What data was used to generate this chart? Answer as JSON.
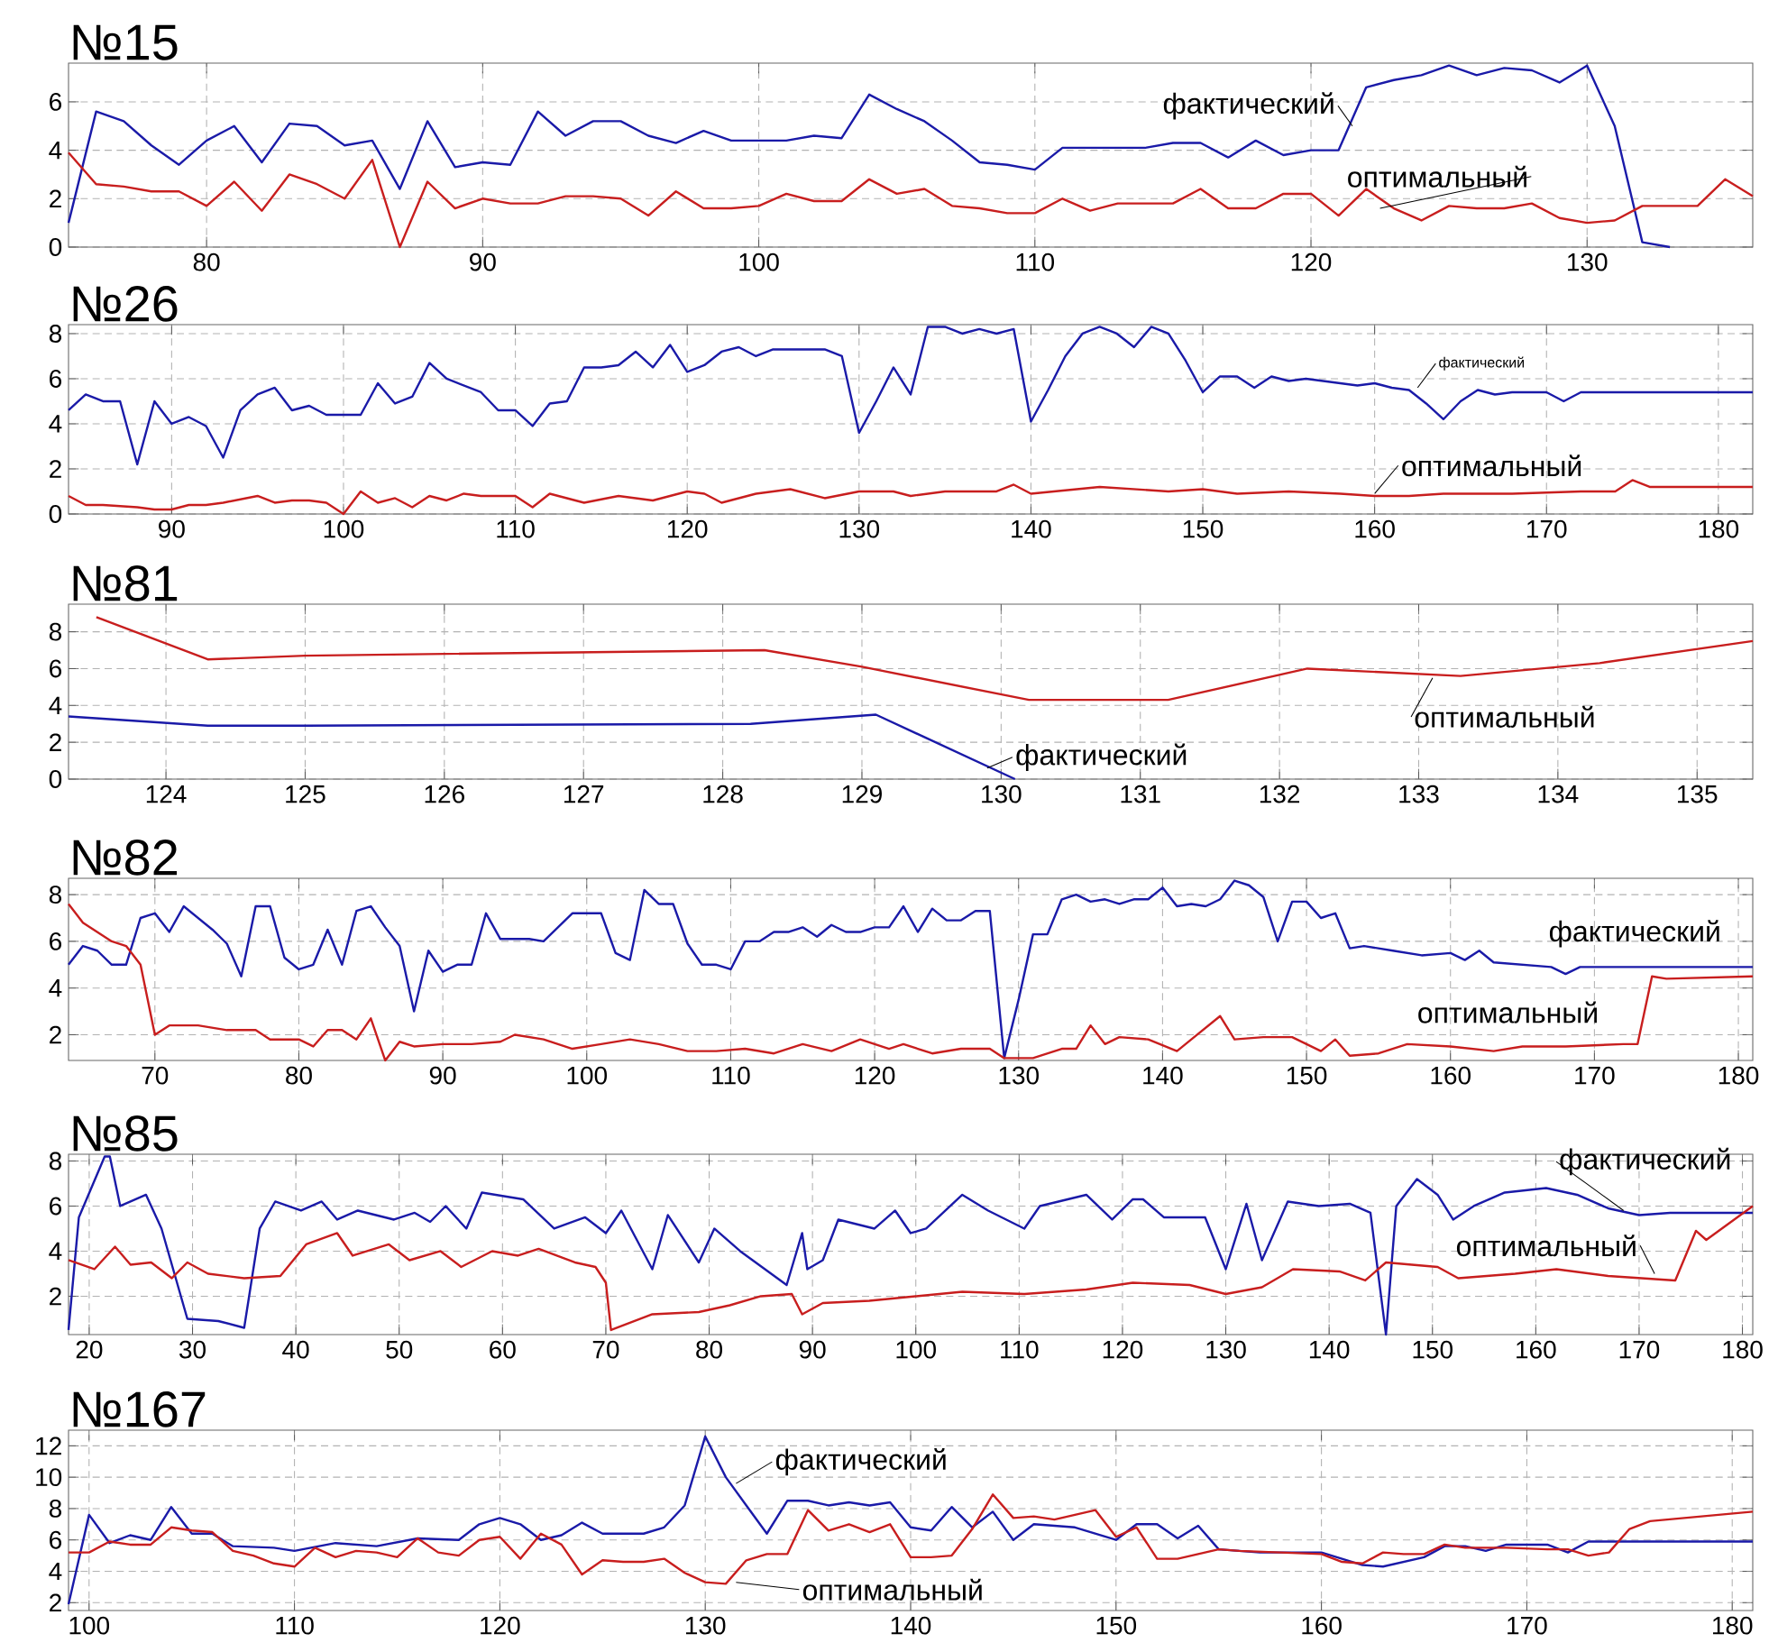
{
  "chart_data": [
    {
      "type": "line",
      "title": "№15",
      "xlim": [
        75,
        136
      ],
      "ylim": [
        0,
        7.6
      ],
      "xticks": [
        80,
        90,
        100,
        110,
        120,
        130
      ],
      "yticks": [
        0,
        2,
        4,
        6
      ],
      "grid": true,
      "series": [
        {
          "color": "#1a1aa8",
          "x": [
            75,
            76,
            77,
            78,
            79,
            80,
            81,
            82,
            83,
            84,
            85,
            86,
            87,
            88,
            89,
            90,
            91,
            92,
            93,
            94,
            95,
            96,
            97,
            98,
            99,
            100,
            101,
            102,
            103,
            104,
            105,
            106,
            107,
            108,
            109,
            110,
            111,
            112,
            113,
            114,
            115,
            116,
            117,
            118,
            119,
            120,
            121,
            122,
            123,
            124,
            125,
            126,
            127,
            128,
            129,
            130,
            131,
            132,
            133
          ],
          "values": [
            1,
            5.6,
            5.2,
            4.2,
            3.4,
            4.4,
            5.0,
            3.5,
            5.1,
            5.0,
            4.2,
            4.4,
            2.4,
            5.2,
            3.3,
            3.5,
            3.4,
            5.6,
            4.6,
            5.2,
            5.2,
            4.6,
            4.3,
            4.8,
            4.4,
            4.4,
            4.4,
            4.6,
            4.5,
            6.3,
            5.7,
            5.2,
            4.4,
            3.5,
            3.4,
            3.2,
            4.1,
            4.1,
            4.1,
            4.1,
            4.3,
            4.3,
            3.7,
            4.4,
            3.8,
            4.0,
            4.0,
            6.6,
            6.9,
            7.1,
            7.5,
            7.1,
            7.4,
            7.3,
            6.8,
            7.5,
            5.0,
            0.2,
            0
          ]
        },
        {
          "color": "#c81e1e",
          "x": [
            75,
            76,
            77,
            78,
            79,
            80,
            81,
            82,
            83,
            84,
            85,
            86,
            87,
            88,
            89,
            90,
            91,
            92,
            93,
            94,
            95,
            96,
            97,
            98,
            99,
            100,
            101,
            102,
            103,
            104,
            105,
            106,
            107,
            108,
            109,
            110,
            111,
            112,
            113,
            114,
            115,
            116,
            117,
            118,
            119,
            120,
            121,
            122,
            123,
            124,
            125,
            126,
            127,
            128,
            129,
            130,
            131,
            132,
            133,
            134,
            135,
            136
          ],
          "values": [
            3.9,
            2.6,
            2.5,
            2.3,
            2.3,
            1.7,
            2.7,
            1.5,
            3.0,
            2.6,
            2.0,
            3.6,
            0,
            2.7,
            1.6,
            2.0,
            1.8,
            1.8,
            2.1,
            2.1,
            2.0,
            1.3,
            2.3,
            1.6,
            1.6,
            1.7,
            2.2,
            1.9,
            1.9,
            2.8,
            2.2,
            2.4,
            1.7,
            1.6,
            1.4,
            1.4,
            2.0,
            1.5,
            1.8,
            1.8,
            1.8,
            2.4,
            1.6,
            1.6,
            2.2,
            2.2,
            1.3,
            2.4,
            1.6,
            1.1,
            1.7,
            1.6,
            1.6,
            1.8,
            1.2,
            1.0,
            1.1,
            1.7,
            1.7,
            1.7,
            2.8,
            2.1
          ]
        }
      ],
      "annotations": [
        {
          "text": "фактический",
          "x": 121.5,
          "y": 5.0
        },
        {
          "text": "оптимальный",
          "x": 122.5,
          "y": 1.6
        }
      ]
    },
    {
      "type": "line",
      "title": "№26",
      "xlim": [
        84,
        182
      ],
      "ylim": [
        0,
        8.4
      ],
      "xticks": [
        90,
        100,
        110,
        120,
        130,
        140,
        150,
        160,
        170,
        180
      ],
      "yticks": [
        0,
        2,
        4,
        6,
        8
      ],
      "grid": true,
      "series": [
        {
          "color": "#1a1aa8",
          "x": [
            84,
            85,
            86,
            87,
            88,
            89,
            90,
            91,
            92,
            93,
            94,
            95,
            96,
            97,
            98,
            99,
            100,
            101,
            102,
            103,
            104,
            105,
            106,
            107,
            108,
            109,
            110,
            111,
            112,
            113,
            114,
            115,
            116,
            117,
            118,
            119,
            120,
            121,
            122,
            123,
            124,
            125,
            126,
            127,
            128,
            129,
            130,
            131,
            132,
            133,
            134,
            135,
            136,
            137,
            138,
            139,
            140,
            141,
            142,
            143,
            144,
            145,
            146,
            147,
            148,
            149,
            150,
            151,
            152,
            153,
            154,
            155,
            156,
            157,
            158,
            159,
            160,
            161,
            162,
            163,
            164,
            165,
            166,
            167,
            168,
            169,
            170,
            171,
            172,
            173,
            182
          ],
          "values": [
            4.6,
            5.3,
            5.0,
            5.0,
            2.2,
            5.0,
            4.0,
            4.3,
            3.9,
            2.5,
            4.6,
            5.3,
            5.6,
            4.6,
            4.8,
            4.4,
            4.4,
            4.4,
            5.8,
            4.9,
            5.2,
            6.7,
            6.0,
            5.7,
            5.4,
            4.6,
            4.6,
            3.9,
            4.9,
            5.0,
            6.5,
            6.5,
            6.6,
            7.2,
            6.5,
            7.5,
            6.3,
            6.6,
            7.2,
            7.4,
            7.0,
            7.3,
            7.3,
            7.3,
            7.3,
            7.0,
            3.6,
            5.0,
            6.5,
            5.3,
            8.3,
            8.3,
            8.0,
            8.2,
            8.0,
            8.2,
            4.1,
            5.5,
            7.0,
            8.0,
            8.3,
            8.0,
            7.4,
            8.3,
            8.0,
            6.8,
            5.4,
            6.1,
            6.1,
            5.6,
            6.1,
            5.9,
            6.0,
            5.9,
            5.8,
            5.7,
            5.8,
            5.6,
            5.5,
            4.9,
            4.2,
            5.0,
            5.5,
            5.3,
            5.4,
            5.4,
            5.4,
            5.0,
            5.4,
            5.4,
            5.4
          ]
        },
        {
          "color": "#c81e1e",
          "x": [
            84,
            85,
            86,
            88,
            89,
            90,
            91,
            92,
            93,
            95,
            96,
            97,
            98,
            99,
            100,
            101,
            102,
            103,
            104,
            105,
            106,
            107,
            108,
            110,
            111,
            112,
            114,
            116,
            118,
            120,
            121,
            122,
            124,
            126,
            128,
            130,
            132,
            133,
            135,
            138,
            139,
            140,
            144,
            148,
            150,
            152,
            155,
            158,
            160,
            162,
            164,
            168,
            172,
            174,
            175,
            176,
            182
          ],
          "values": [
            0.8,
            0.4,
            0.4,
            0.3,
            0.2,
            0.2,
            0.4,
            0.4,
            0.5,
            0.8,
            0.5,
            0.6,
            0.6,
            0.5,
            0,
            1.0,
            0.5,
            0.7,
            0.3,
            0.8,
            0.6,
            0.9,
            0.8,
            0.8,
            0.3,
            0.9,
            0.5,
            0.8,
            0.6,
            1.0,
            0.9,
            0.5,
            0.9,
            1.1,
            0.7,
            1.0,
            1.0,
            0.8,
            1.0,
            1.0,
            1.3,
            0.9,
            1.2,
            1.0,
            1.1,
            0.9,
            1.0,
            0.9,
            0.8,
            0.8,
            0.9,
            0.9,
            1.0,
            1.0,
            1.5,
            1.2,
            1.2
          ]
        }
      ],
      "annotations": [
        {
          "text": "фактический",
          "x": 162.5,
          "y": 5.6
        },
        {
          "text": "оптимальный",
          "x": 160,
          "y": 0.9
        }
      ]
    },
    {
      "type": "line",
      "title": "№81",
      "xlim": [
        123.3,
        135.4
      ],
      "ylim": [
        0,
        9.5
      ],
      "xticks": [
        124,
        125,
        126,
        127,
        128,
        129,
        130,
        131,
        132,
        133,
        134,
        135
      ],
      "yticks": [
        0,
        2,
        4,
        6,
        8
      ],
      "grid": true,
      "series": [
        {
          "color": "#1a1aa8",
          "x": [
            123.3,
            124.3,
            125,
            128.2,
            129.1,
            130.1
          ],
          "values": [
            3.4,
            2.9,
            2.9,
            3.0,
            3.5,
            0
          ]
        },
        {
          "color": "#c81e1e",
          "x": [
            123.5,
            124.3,
            125,
            126,
            128.3,
            129,
            130.2,
            131.2,
            132.2,
            133.3,
            134.3,
            135.4
          ],
          "values": [
            8.8,
            6.5,
            6.7,
            6.8,
            7.0,
            6.1,
            4.3,
            4.3,
            6.0,
            5.6,
            6.3,
            7.5
          ]
        }
      ],
      "annotations": [
        {
          "text": "фактический",
          "x": 129.9,
          "y": 0.6
        },
        {
          "text": "оптимальный",
          "x": 133.1,
          "y": 5.5
        }
      ]
    },
    {
      "type": "line",
      "title": "№82",
      "xlim": [
        64,
        181
      ],
      "ylim": [
        0.9,
        8.7
      ],
      "xticks": [
        70,
        80,
        90,
        100,
        110,
        120,
        130,
        140,
        150,
        160,
        170,
        180
      ],
      "yticks": [
        2,
        4,
        6,
        8
      ],
      "grid": true,
      "series": [
        {
          "color": "#1a1aa8",
          "x": [
            64,
            65,
            66,
            67,
            68,
            69,
            70,
            71,
            72,
            73,
            74,
            75,
            76,
            77,
            78,
            79,
            80,
            81,
            82,
            83,
            84,
            85,
            86,
            87,
            88,
            89,
            90,
            91,
            92,
            93,
            94,
            95,
            96,
            97,
            98,
            99,
            100,
            101,
            102,
            103,
            104,
            105,
            106,
            107,
            108,
            109,
            110,
            111,
            112,
            113,
            114,
            115,
            116,
            117,
            118,
            119,
            120,
            121,
            122,
            123,
            124,
            125,
            126,
            127,
            128,
            129,
            130,
            131,
            132,
            133,
            134,
            135,
            136,
            137,
            138,
            139,
            140,
            141,
            142,
            143,
            144,
            145,
            146,
            147,
            148,
            149,
            150,
            151,
            152,
            153,
            154,
            156,
            158,
            160,
            161,
            162,
            163,
            165,
            167,
            168,
            169,
            181
          ],
          "values": [
            5.0,
            5.8,
            5.6,
            5.0,
            5.0,
            7.0,
            7.2,
            6.4,
            7.5,
            7.0,
            6.5,
            5.9,
            4.5,
            7.5,
            7.5,
            5.3,
            4.8,
            5.0,
            6.5,
            5.0,
            7.3,
            7.5,
            6.6,
            5.8,
            3.0,
            5.6,
            4.7,
            5.0,
            5.0,
            7.2,
            6.1,
            6.1,
            6.1,
            6.0,
            6.6,
            7.2,
            7.2,
            7.2,
            5.5,
            5.2,
            8.2,
            7.6,
            7.6,
            5.9,
            5.0,
            5.0,
            4.8,
            6.0,
            6.0,
            6.4,
            6.4,
            6.6,
            6.2,
            6.7,
            6.4,
            6.4,
            6.6,
            6.6,
            7.5,
            6.4,
            7.4,
            6.9,
            6.9,
            7.3,
            7.3,
            1.0,
            3.5,
            6.3,
            6.3,
            7.8,
            8.0,
            7.7,
            7.8,
            7.6,
            7.8,
            7.8,
            8.3,
            7.5,
            7.6,
            7.5,
            7.8,
            8.6,
            8.4,
            7.9,
            6.0,
            7.7,
            7.7,
            7.0,
            7.2,
            5.7,
            5.8,
            5.6,
            5.4,
            5.5,
            5.2,
            5.6,
            5.1,
            5.0,
            4.9,
            4.6,
            4.9,
            4.9
          ]
        },
        {
          "color": "#c81e1e",
          "x": [
            64,
            65,
            66,
            67,
            68,
            69,
            70,
            71,
            73,
            75,
            77,
            78,
            80,
            81,
            82,
            83,
            84,
            85,
            86,
            87,
            88,
            90,
            92,
            94,
            95,
            97,
            99,
            101,
            103,
            105,
            107,
            109,
            111,
            113,
            115,
            117,
            119,
            121,
            122,
            124,
            126,
            128,
            129,
            131,
            133,
            134,
            135,
            136,
            137,
            139,
            141,
            142,
            144,
            145,
            147,
            149,
            151,
            152,
            153,
            155,
            157,
            160,
            163,
            165,
            168,
            172,
            173,
            174,
            175,
            181
          ],
          "values": [
            7.6,
            6.8,
            6.4,
            6.0,
            5.8,
            5.0,
            2.0,
            2.4,
            2.4,
            2.2,
            2.2,
            1.8,
            1.8,
            1.5,
            2.2,
            2.2,
            1.8,
            2.7,
            0.9,
            1.7,
            1.5,
            1.6,
            1.6,
            1.7,
            2.0,
            1.8,
            1.4,
            1.6,
            1.8,
            1.6,
            1.3,
            1.3,
            1.4,
            1.2,
            1.6,
            1.3,
            1.8,
            1.4,
            1.6,
            1.2,
            1.4,
            1.4,
            1.0,
            1.0,
            1.4,
            1.4,
            2.4,
            1.6,
            1.9,
            1.8,
            1.3,
            1.8,
            2.8,
            1.8,
            1.9,
            1.9,
            1.3,
            1.8,
            1.1,
            1.2,
            1.6,
            1.5,
            1.3,
            1.5,
            1.5,
            1.6,
            1.6,
            4.5,
            4.4,
            4.5
          ]
        }
      ],
      "annotations": [
        {
          "text": "фактический",
          "x": 180,
          "y": 5.0
        },
        {
          "text": "оптимальный",
          "x": 170,
          "y": 1.6
        }
      ]
    },
    {
      "type": "line",
      "title": "№85",
      "xlim": [
        18,
        181
      ],
      "ylim": [
        0.3,
        8.3
      ],
      "xticks": [
        20,
        30,
        40,
        50,
        60,
        70,
        80,
        90,
        100,
        110,
        120,
        130,
        140,
        150,
        160,
        170,
        180
      ],
      "yticks": [
        2,
        4,
        6,
        8
      ],
      "grid": true,
      "series": [
        {
          "color": "#1a1aa8",
          "x": [
            18,
            19,
            21.5,
            22,
            23,
            25.5,
            27,
            29.5,
            32.5,
            35,
            36.5,
            38,
            40.5,
            42.5,
            44,
            46,
            49.5,
            51.5,
            53,
            54.5,
            56.5,
            58,
            62,
            65,
            68,
            70,
            71.5,
            74.5,
            76,
            79,
            80.5,
            83,
            87.5,
            89,
            89.5,
            91,
            92.5,
            96,
            98,
            99.5,
            101,
            104.5,
            107,
            110.5,
            112,
            116.5,
            119,
            121,
            122,
            124,
            128,
            130,
            132,
            133.5,
            136,
            139,
            142,
            144,
            145.5,
            146.5,
            148.5,
            150.5,
            152,
            154,
            157,
            161,
            164,
            167,
            170,
            173,
            181
          ],
          "values": [
            0.5,
            5.5,
            8.2,
            8.2,
            6.0,
            6.5,
            5.0,
            1.0,
            0.9,
            0.6,
            5.0,
            6.2,
            5.8,
            6.2,
            5.4,
            5.8,
            5.4,
            5.7,
            5.3,
            6.0,
            5.0,
            6.6,
            6.3,
            5.0,
            5.5,
            4.8,
            5.8,
            3.2,
            5.6,
            3.5,
            5.0,
            4.0,
            2.5,
            4.8,
            3.2,
            3.6,
            5.4,
            5.0,
            5.8,
            4.8,
            5.0,
            6.5,
            5.8,
            5.0,
            6.0,
            6.5,
            5.4,
            6.3,
            6.3,
            5.5,
            5.5,
            3.2,
            6.1,
            3.6,
            6.2,
            6.0,
            6.1,
            5.7,
            0.3,
            6.0,
            7.2,
            6.5,
            5.4,
            6.0,
            6.6,
            6.8,
            6.5,
            5.9,
            5.6,
            5.7,
            5.7
          ]
        },
        {
          "color": "#c81e1e",
          "x": [
            18,
            20.5,
            22.5,
            24,
            26,
            28,
            29.5,
            31.5,
            35,
            38.5,
            41,
            44,
            45.5,
            49,
            51,
            54,
            56,
            59,
            61.5,
            63.5,
            67,
            69,
            70,
            70.5,
            74.5,
            79,
            82,
            85,
            88,
            89,
            91,
            95.5,
            100,
            104.5,
            110.5,
            116.5,
            121,
            126.5,
            130,
            133.5,
            136.5,
            141,
            143.5,
            145.5,
            150.5,
            152.5,
            158,
            162,
            167,
            173.5,
            175.5,
            176.5,
            181
          ],
          "values": [
            3.6,
            3.2,
            4.2,
            3.4,
            3.5,
            2.8,
            3.5,
            3.0,
            2.8,
            2.9,
            4.3,
            4.8,
            3.8,
            4.3,
            3.6,
            4.0,
            3.3,
            4.0,
            3.8,
            4.1,
            3.5,
            3.3,
            2.6,
            0.5,
            1.2,
            1.3,
            1.6,
            2.0,
            2.1,
            1.2,
            1.7,
            1.8,
            2.0,
            2.2,
            2.1,
            2.3,
            2.6,
            2.5,
            2.1,
            2.4,
            3.2,
            3.1,
            2.7,
            3.5,
            3.3,
            2.8,
            3.0,
            3.2,
            2.9,
            2.7,
            4.9,
            4.5,
            6.0
          ]
        }
      ],
      "annotations": [
        {
          "text": "фактический",
          "x": 168.5,
          "y": 5.8
        },
        {
          "text": "оптимальный",
          "x": 171.5,
          "y": 3.0
        }
      ]
    },
    {
      "type": "line",
      "title": "№167",
      "xlim": [
        99,
        181
      ],
      "ylim": [
        1.5,
        13
      ],
      "xticks": [
        100,
        110,
        120,
        130,
        140,
        150,
        160,
        170,
        180
      ],
      "yticks": [
        2,
        4,
        6,
        8,
        10,
        12
      ],
      "grid": true,
      "series": [
        {
          "color": "#1a1aa8",
          "x": [
            99,
            100,
            101,
            102,
            103,
            104,
            105,
            106,
            107,
            109,
            110,
            112,
            114,
            116,
            118,
            119,
            120,
            121,
            122,
            123,
            124,
            125,
            127,
            128,
            129,
            130,
            131,
            132,
            133,
            134,
            135,
            136,
            137,
            138,
            139,
            140,
            141,
            142,
            143,
            144,
            145,
            146,
            147,
            148,
            150,
            151,
            152,
            153,
            154,
            155,
            157,
            160,
            162,
            163,
            165,
            166,
            167,
            168,
            169,
            171,
            172,
            173,
            181
          ],
          "values": [
            1.9,
            7.6,
            5.8,
            6.3,
            6.0,
            8.1,
            6.4,
            6.4,
            5.6,
            5.5,
            5.3,
            5.8,
            5.6,
            6.1,
            6.0,
            7.0,
            7.4,
            7.0,
            6.0,
            6.3,
            7.1,
            6.4,
            6.4,
            6.8,
            8.2,
            12.6,
            10.0,
            8.2,
            6.4,
            8.5,
            8.5,
            8.2,
            8.4,
            8.2,
            8.4,
            6.8,
            6.6,
            8.1,
            6.8,
            7.8,
            6.0,
            7.0,
            6.9,
            6.8,
            6.0,
            7.0,
            7.0,
            6.1,
            6.9,
            5.4,
            5.2,
            5.2,
            4.4,
            4.3,
            4.9,
            5.6,
            5.6,
            5.3,
            5.7,
            5.7,
            5.2,
            5.9,
            5.9
          ]
        },
        {
          "color": "#c81e1e",
          "x": [
            99,
            100,
            101,
            102,
            103,
            104,
            105,
            106,
            107,
            108,
            109,
            110,
            111,
            112,
            113,
            114,
            115,
            116,
            117,
            118,
            119,
            120,
            121,
            122,
            123,
            124,
            125,
            126,
            127,
            128,
            129,
            130,
            131,
            132,
            133,
            134,
            135,
            136,
            137,
            138,
            139,
            140,
            141,
            142,
            143,
            144,
            145,
            146,
            147,
            148,
            149,
            150,
            151,
            152,
            153,
            154,
            155,
            156,
            158,
            160,
            161,
            162,
            163,
            164,
            165,
            166,
            167,
            169,
            171,
            172,
            173,
            174,
            175,
            176,
            181
          ],
          "values": [
            5.2,
            5.2,
            5.9,
            5.7,
            5.7,
            6.8,
            6.6,
            6.5,
            5.3,
            5.0,
            4.5,
            4.3,
            5.5,
            4.9,
            5.3,
            5.2,
            4.9,
            6.1,
            5.2,
            5.0,
            6.0,
            6.2,
            4.8,
            6.4,
            5.7,
            3.8,
            4.7,
            4.6,
            4.6,
            4.8,
            3.9,
            3.3,
            3.2,
            4.7,
            5.1,
            5.1,
            7.9,
            6.6,
            7.0,
            6.5,
            7.0,
            4.9,
            4.9,
            5.0,
            6.7,
            8.9,
            7.4,
            7.5,
            7.3,
            7.6,
            7.9,
            6.2,
            6.8,
            4.8,
            4.8,
            5.1,
            5.4,
            5.3,
            5.2,
            5.1,
            4.6,
            4.5,
            5.2,
            5.1,
            5.1,
            5.7,
            5.5,
            5.5,
            5.4,
            5.4,
            5.0,
            5.2,
            6.7,
            7.2,
            7.8
          ]
        }
      ],
      "annotations": [
        {
          "text": "фактический",
          "x": 131.5,
          "y": 9.6
        },
        {
          "text": "оптимальный",
          "x": 131.5,
          "y": 3.3
        }
      ]
    }
  ]
}
